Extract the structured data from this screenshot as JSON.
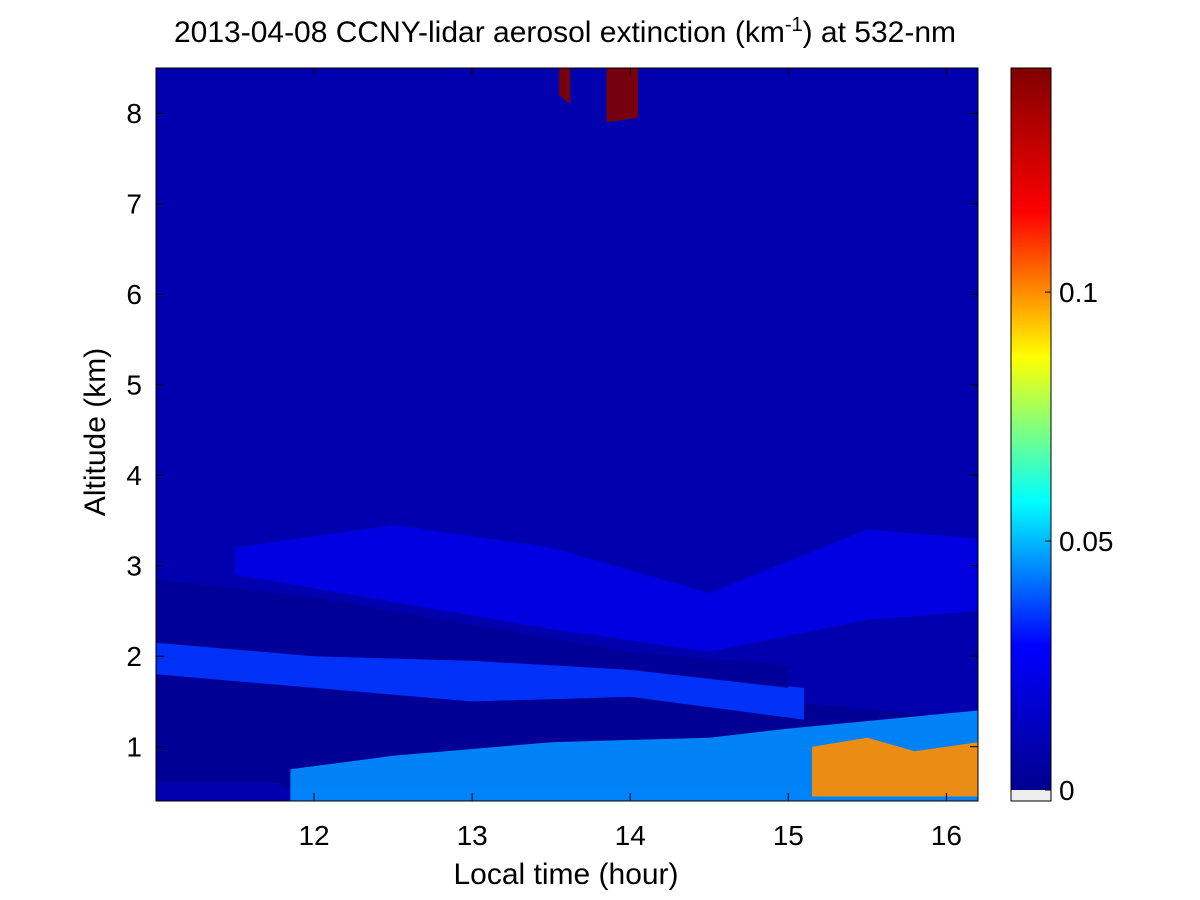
{
  "chart_data": {
    "type": "heatmap",
    "title": {
      "prefix": "2013-04-08 CCNY-lidar aerosol extinction (km",
      "superscript": "-1",
      "suffix": ") at 532-nm"
    },
    "xlabel": "Local time (hour)",
    "ylabel": "Altitude (km)",
    "xlim": [
      11.0,
      16.2
    ],
    "ylim": [
      0.4,
      8.5
    ],
    "x_ticks": [
      12,
      13,
      14,
      15,
      16
    ],
    "y_ticks": [
      1,
      2,
      3,
      4,
      5,
      6,
      7,
      8
    ],
    "colorbar": {
      "colormap": "jet",
      "range": [
        0,
        0.145
      ],
      "ticks": [
        {
          "value": 0,
          "label": "0"
        },
        {
          "value": 0.05,
          "label": "0.05"
        },
        {
          "value": 0.1,
          "label": "0.1"
        }
      ],
      "colors": [
        "#00008f",
        "#0000ff",
        "#00ffff",
        "#ffff00",
        "#ff0000",
        "#800000"
      ]
    },
    "background_value": 0.008,
    "features": [
      {
        "name": "lower clean layer",
        "value": 0.001,
        "t": [
          11.0,
          16.2
        ],
        "top": [
          [
            11.0,
            1.8
          ],
          [
            12.5,
            1.9
          ],
          [
            13.5,
            1.65
          ],
          [
            14.2,
            1.75
          ],
          [
            15.0,
            1.5
          ],
          [
            16.2,
            1.3
          ]
        ],
        "bottom": [
          [
            11.0,
            0.6
          ],
          [
            11.8,
            0.6
          ],
          [
            11.8,
            0.55
          ],
          [
            16.2,
            0.55
          ]
        ]
      },
      {
        "name": "aerosol layer near 2 km",
        "value": 0.035,
        "t": [
          11.0,
          15.1
        ],
        "top": [
          [
            11.0,
            2.15
          ],
          [
            12.0,
            2.0
          ],
          [
            13.0,
            1.95
          ],
          [
            14.0,
            1.85
          ],
          [
            15.1,
            1.65
          ]
        ],
        "bottom": [
          [
            11.0,
            1.8
          ],
          [
            12.0,
            1.65
          ],
          [
            13.0,
            1.5
          ],
          [
            14.0,
            1.55
          ],
          [
            15.1,
            1.3
          ]
        ]
      },
      {
        "name": "clean layer 2-2.8 km",
        "value": 0.002,
        "t": [
          11.0,
          15.0
        ],
        "top": [
          [
            11.0,
            2.85
          ],
          [
            12.0,
            2.65
          ],
          [
            13.0,
            2.35
          ],
          [
            14.0,
            2.05
          ],
          [
            15.0,
            1.9
          ]
        ],
        "bottom": [
          [
            11.0,
            2.15
          ],
          [
            12.0,
            2.0
          ],
          [
            13.0,
            1.95
          ],
          [
            14.0,
            1.85
          ],
          [
            15.0,
            1.65
          ]
        ]
      },
      {
        "name": "residual layer 2.5-3.3 km",
        "value": 0.022,
        "t": [
          11.5,
          16.2
        ],
        "top": [
          [
            11.5,
            3.2
          ],
          [
            12.5,
            3.45
          ],
          [
            13.5,
            3.2
          ],
          [
            14.5,
            2.7
          ],
          [
            15.5,
            3.4
          ],
          [
            16.2,
            3.3
          ]
        ],
        "bottom": [
          [
            11.5,
            2.9
          ],
          [
            12.5,
            2.6
          ],
          [
            13.5,
            2.3
          ],
          [
            14.5,
            2.05
          ],
          [
            15.5,
            2.4
          ],
          [
            16.2,
            2.5
          ]
        ]
      },
      {
        "name": "boundary layer aerosol",
        "value": 0.045,
        "t": [
          11.85,
          16.2
        ],
        "top": [
          [
            11.85,
            0.75
          ],
          [
            12.5,
            0.9
          ],
          [
            13.5,
            1.05
          ],
          [
            14.5,
            1.1
          ],
          [
            15.0,
            1.2
          ],
          [
            16.2,
            1.4
          ]
        ],
        "bottom": [
          [
            11.85,
            0.4
          ],
          [
            16.2,
            0.4
          ]
        ]
      },
      {
        "name": "dense aerosol near surface",
        "value": 0.1,
        "t": [
          15.15,
          16.2
        ],
        "top": [
          [
            15.15,
            1.0
          ],
          [
            15.5,
            1.1
          ],
          [
            15.8,
            0.95
          ],
          [
            16.2,
            1.05
          ]
        ],
        "bottom": [
          [
            15.15,
            0.45
          ],
          [
            16.2,
            0.45
          ]
        ]
      },
      {
        "name": "cirrus cloud",
        "value": 0.145,
        "t": [
          13.85,
          14.05
        ],
        "top": [
          [
            13.85,
            8.5
          ],
          [
            14.05,
            8.5
          ]
        ],
        "bottom": [
          [
            13.85,
            7.9
          ],
          [
            14.05,
            7.95
          ]
        ]
      },
      {
        "name": "thin cirrus",
        "value": 0.145,
        "t": [
          13.55,
          13.62
        ],
        "top": [
          [
            13.55,
            8.5
          ],
          [
            13.62,
            8.5
          ]
        ],
        "bottom": [
          [
            13.55,
            8.2
          ],
          [
            13.62,
            8.1
          ]
        ]
      }
    ]
  }
}
